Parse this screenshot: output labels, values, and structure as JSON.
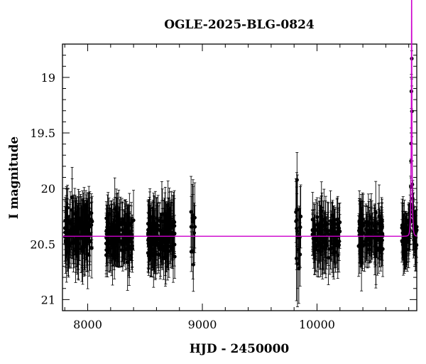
{
  "chart_data": {
    "type": "scatter",
    "title": "OGLE-2025-BLG-0824",
    "xlabel": "HJD - 2450000",
    "ylabel": "I magnitude",
    "xlim": [
      7780,
      10870
    ],
    "ylim": [
      21.1,
      18.7
    ],
    "y_inverted": true,
    "grid": false,
    "x_ticks": [
      8000,
      9000,
      10000
    ],
    "x_tick_labels": [
      "8000",
      "9000",
      "10000"
    ],
    "y_ticks": [
      19,
      19.5,
      20,
      20.5,
      21
    ],
    "y_tick_labels": [
      "19",
      "19.5",
      "20",
      "20.5",
      "21"
    ],
    "baseline_mag": 20.43,
    "model_color": "#cc00cc",
    "point_color": "#000000",
    "model": {
      "type": "point-lens",
      "t0": 10825,
      "tE": 8,
      "u0": 0.12,
      "baseline": 20.43
    },
    "seasons": [
      {
        "start": 7800,
        "end": 8040,
        "n": 140,
        "mean": 20.38,
        "scatter": 0.17,
        "err": 0.24
      },
      {
        "start": 8160,
        "end": 8400,
        "n": 150,
        "mean": 20.42,
        "scatter": 0.15,
        "err": 0.22
      },
      {
        "start": 8525,
        "end": 8760,
        "n": 150,
        "mean": 20.42,
        "scatter": 0.16,
        "err": 0.24
      },
      {
        "start": 8900,
        "end": 8935,
        "n": 12,
        "mean": 20.35,
        "scatter": 0.25,
        "err": 0.25
      },
      {
        "start": 9810,
        "end": 9860,
        "n": 18,
        "mean": 20.3,
        "scatter": 0.35,
        "err": 0.3
      },
      {
        "start": 9960,
        "end": 10200,
        "n": 120,
        "mean": 20.42,
        "scatter": 0.15,
        "err": 0.22
      },
      {
        "start": 10360,
        "end": 10580,
        "n": 110,
        "mean": 20.42,
        "scatter": 0.15,
        "err": 0.22
      },
      {
        "start": 10740,
        "end": 10870,
        "n": 90,
        "mean": 20.4,
        "scatter": 0.14,
        "err": 0.2,
        "follows_model": true
      }
    ]
  }
}
